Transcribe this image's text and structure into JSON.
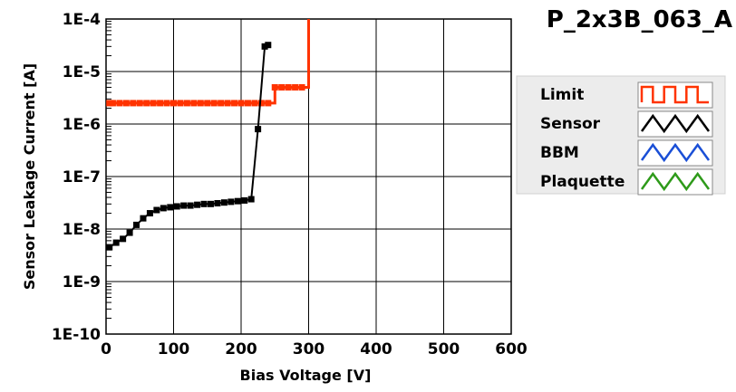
{
  "chart_data": {
    "type": "line",
    "title": "P_2x3B_063_A",
    "xlabel": "Bias Voltage [V]",
    "ylabel": "Sensor Leakage Current [A]",
    "xlim": [
      0,
      600
    ],
    "ylim": [
      1e-10,
      0.0001
    ],
    "yscale": "log",
    "grid": true,
    "legend_position": "right",
    "x_ticks": [
      "0",
      "100",
      "200",
      "300",
      "400",
      "500",
      "600"
    ],
    "y_ticks": [
      "1E-10",
      "1E-9",
      "1E-8",
      "1E-7",
      "1E-6",
      "1E-5",
      "1E-4"
    ],
    "series": [
      {
        "name": "Limit",
        "color": "#ff3300",
        "step": true,
        "x": [
          5,
          10,
          20,
          30,
          40,
          50,
          60,
          70,
          80,
          90,
          100,
          110,
          120,
          130,
          140,
          150,
          160,
          170,
          180,
          190,
          200,
          210,
          220,
          230,
          240,
          250,
          260,
          270,
          280,
          290,
          300
        ],
        "y": [
          2.5e-06,
          2.5e-06,
          2.5e-06,
          2.5e-06,
          2.5e-06,
          2.5e-06,
          2.5e-06,
          2.5e-06,
          2.5e-06,
          2.5e-06,
          2.5e-06,
          2.5e-06,
          2.5e-06,
          2.5e-06,
          2.5e-06,
          2.5e-06,
          2.5e-06,
          2.5e-06,
          2.5e-06,
          2.5e-06,
          2.5e-06,
          2.5e-06,
          2.5e-06,
          2.5e-06,
          2.5e-06,
          5e-06,
          5e-06,
          5e-06,
          5e-06,
          5e-06,
          0.0001
        ]
      },
      {
        "name": "Sensor",
        "color": "#000000",
        "step": false,
        "x": [
          5,
          15,
          25,
          35,
          45,
          55,
          65,
          75,
          85,
          95,
          105,
          115,
          125,
          135,
          145,
          155,
          165,
          175,
          185,
          195,
          205,
          215,
          225,
          235,
          240
        ],
        "y": [
          4.5e-09,
          5.5e-09,
          6.5e-09,
          8.5e-09,
          1.2e-08,
          1.6e-08,
          2e-08,
          2.3e-08,
          2.5e-08,
          2.6e-08,
          2.7e-08,
          2.8e-08,
          2.8e-08,
          2.9e-08,
          3e-08,
          3e-08,
          3.1e-08,
          3.2e-08,
          3.3e-08,
          3.4e-08,
          3.5e-08,
          3.7e-08,
          8e-07,
          3e-05,
          3.2e-05
        ]
      },
      {
        "name": "BBM",
        "color": "#1a4fd6",
        "step": false,
        "x": [],
        "y": []
      },
      {
        "name": "Plaquette",
        "color": "#2e9a1a",
        "step": false,
        "x": [],
        "y": []
      }
    ]
  }
}
